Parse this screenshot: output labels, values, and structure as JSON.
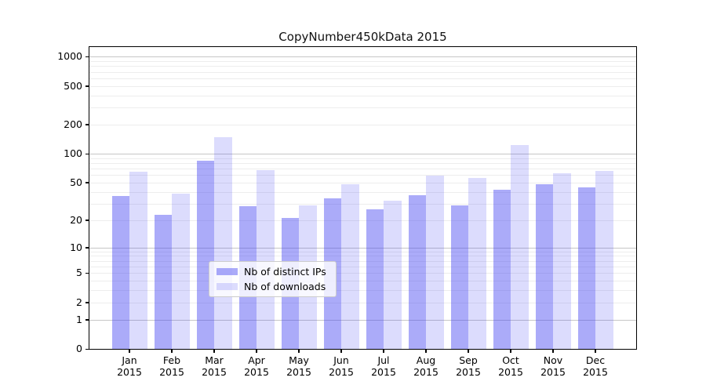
{
  "chart_data": {
    "type": "bar",
    "title": "CopyNumber450kData 2015",
    "categories": [
      "Jan",
      "Feb",
      "Mar",
      "Apr",
      "May",
      "Jun",
      "Jul",
      "Aug",
      "Sep",
      "Oct",
      "Nov",
      "Dec"
    ],
    "category_year": "2015",
    "series": [
      {
        "name": "Nb of distinct IPs",
        "color": "rgba(68,68,242,0.45)",
        "values": [
          36,
          23,
          84,
          28,
          21,
          34,
          26,
          37,
          29,
          42,
          48,
          45
        ]
      },
      {
        "name": "Nb of downloads",
        "color": "rgba(68,68,242,0.19)",
        "values": [
          65,
          38,
          148,
          67,
          29,
          48,
          32,
          59,
          56,
          123,
          63,
          66
        ]
      }
    ],
    "y_scale": "log10(1+value)",
    "y_ticks": [
      0,
      1,
      2,
      5,
      10,
      20,
      50,
      100,
      200,
      500,
      1000
    ],
    "y_minor_gridlines": [
      2,
      3,
      4,
      5,
      6,
      7,
      8,
      9,
      20,
      30,
      40,
      50,
      60,
      70,
      80,
      90,
      200,
      300,
      400,
      500,
      600,
      700,
      800,
      900
    ],
    "y_major_gridlines": [
      1,
      10,
      100,
      1000
    ],
    "ylim": [
      0,
      1260
    ],
    "legend_position": "inside lower-center",
    "grid": "on",
    "colors": {
      "bar_dark": "rgba(68,68,242,0.45)",
      "bar_light": "rgba(68,68,242,0.19)",
      "grid_major": "#c6c6c6",
      "grid_minor": "#ededed",
      "spine": "#000000",
      "legend_border": "#cccccc"
    }
  }
}
